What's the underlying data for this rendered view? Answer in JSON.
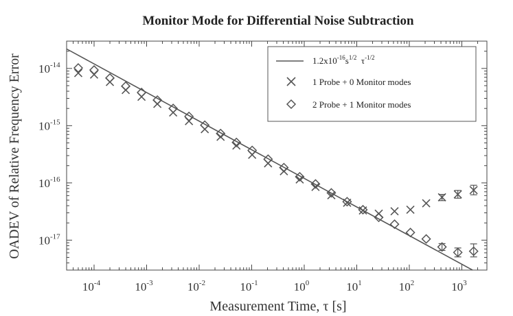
{
  "chart_data": {
    "type": "scatter",
    "title": "Monitor Mode for Differential Noise Subtraction",
    "xlabel": "Measurement Time, τ [s]",
    "ylabel": "OADEV of Relative Frequency Error",
    "x_scale": "log",
    "y_scale": "log",
    "xlim": [
      3e-05,
      3000.0
    ],
    "ylim": [
      3e-18,
      3e-14
    ],
    "grid": false,
    "legend_position": "top-right",
    "x_ticks": [
      {
        "base": "10",
        "exp": "-4",
        "value": 0.0001
      },
      {
        "base": "10",
        "exp": "-3",
        "value": 0.001
      },
      {
        "base": "10",
        "exp": "-2",
        "value": 0.01
      },
      {
        "base": "10",
        "exp": "-1",
        "value": 0.1
      },
      {
        "base": "10",
        "exp": "0",
        "value": 1.0
      },
      {
        "base": "10",
        "exp": "1",
        "value": 10.0
      },
      {
        "base": "10",
        "exp": "2",
        "value": 100.0
      },
      {
        "base": "10",
        "exp": "3",
        "value": 1000.0
      }
    ],
    "y_ticks": [
      {
        "base": "10",
        "exp": "-14",
        "value": 1e-14
      },
      {
        "base": "10",
        "exp": "-15",
        "value": 1e-15
      },
      {
        "base": "10",
        "exp": "-16",
        "value": 1e-16
      },
      {
        "base": "10",
        "exp": "-17",
        "value": 1e-17
      }
    ],
    "fit_line": {
      "label": {
        "pre": "1.2x10",
        "sup1": "-16",
        "mid": "s",
        "sup2": "1/2",
        "post": "  τ",
        "sup3": "-1/2"
      },
      "coefficient": 1.2e-16,
      "exponent": -0.5,
      "color": "#555555"
    },
    "series": [
      {
        "name": "1 Probe + 0 Monitor modes",
        "marker": "x",
        "color": "#555555",
        "x": [
          5e-05,
          0.0001,
          0.0002,
          0.0004,
          0.0008,
          0.0016,
          0.0032,
          0.0064,
          0.0128,
          0.0256,
          0.0512,
          0.102,
          0.205,
          0.41,
          0.82,
          1.64,
          3.28,
          6.55,
          13.1,
          26.2,
          52.4,
          104.9,
          209.7,
          419.4,
          838.9,
          1677.7
        ],
        "y": [
          8.3e-15,
          7.8e-15,
          5.8e-15,
          4.2e-15,
          3.2e-15,
          2.4e-15,
          1.7e-15,
          1.2e-15,
          8.7e-16,
          6.4e-16,
          4.5e-16,
          3.1e-16,
          2.2e-16,
          1.6e-16,
          1.15e-16,
          8.5e-17,
          6.1e-17,
          4.5e-17,
          3.3e-17,
          2.9e-17,
          3.2e-17,
          3.4e-17,
          4.4e-17,
          5.6e-17,
          6.3e-17,
          7.5e-17
        ],
        "err_low": [
          null,
          null,
          null,
          null,
          null,
          null,
          null,
          null,
          null,
          null,
          null,
          null,
          null,
          null,
          null,
          null,
          null,
          null,
          null,
          null,
          null,
          null,
          null,
          4.9e-17,
          5.4e-17,
          6.2e-17
        ],
        "err_high": [
          null,
          null,
          null,
          null,
          null,
          null,
          null,
          null,
          null,
          null,
          null,
          null,
          null,
          null,
          null,
          null,
          null,
          null,
          null,
          null,
          null,
          null,
          null,
          6.3e-17,
          7.4e-17,
          9.1e-17
        ]
      },
      {
        "name": "2 Probe + 1 Monitor modes",
        "marker": "diamond",
        "color": "#555555",
        "x": [
          5e-05,
          0.0001,
          0.0002,
          0.0004,
          0.0008,
          0.0016,
          0.0032,
          0.0064,
          0.0128,
          0.0256,
          0.0512,
          0.102,
          0.205,
          0.41,
          0.82,
          1.64,
          3.28,
          6.55,
          13.1,
          26.2,
          52.4,
          104.9,
          209.7,
          419.4,
          838.9,
          1677.7
        ],
        "y": [
          1.02e-14,
          9.4e-15,
          6.8e-15,
          4.9e-15,
          3.8e-15,
          2.8e-15,
          2e-15,
          1.45e-15,
          1.02e-15,
          7.3e-16,
          5.1e-16,
          3.7e-16,
          2.6e-16,
          1.85e-16,
          1.28e-16,
          9.6e-17,
          6.7e-17,
          4.7e-17,
          3.4e-17,
          2.5e-17,
          1.9e-17,
          1.36e-17,
          1.05e-17,
          7.6e-18,
          6.1e-18,
          6.4e-18
        ],
        "err_low": [
          null,
          null,
          null,
          null,
          null,
          null,
          null,
          null,
          null,
          null,
          null,
          null,
          null,
          null,
          null,
          null,
          null,
          null,
          null,
          null,
          null,
          null,
          null,
          6.6e-18,
          5.1e-18,
          5.1e-18
        ],
        "err_high": [
          null,
          null,
          null,
          null,
          null,
          null,
          null,
          null,
          null,
          null,
          null,
          null,
          null,
          null,
          null,
          null,
          null,
          null,
          null,
          null,
          null,
          null,
          null,
          8.7e-18,
          7.3e-18,
          8.6e-18
        ]
      }
    ]
  }
}
